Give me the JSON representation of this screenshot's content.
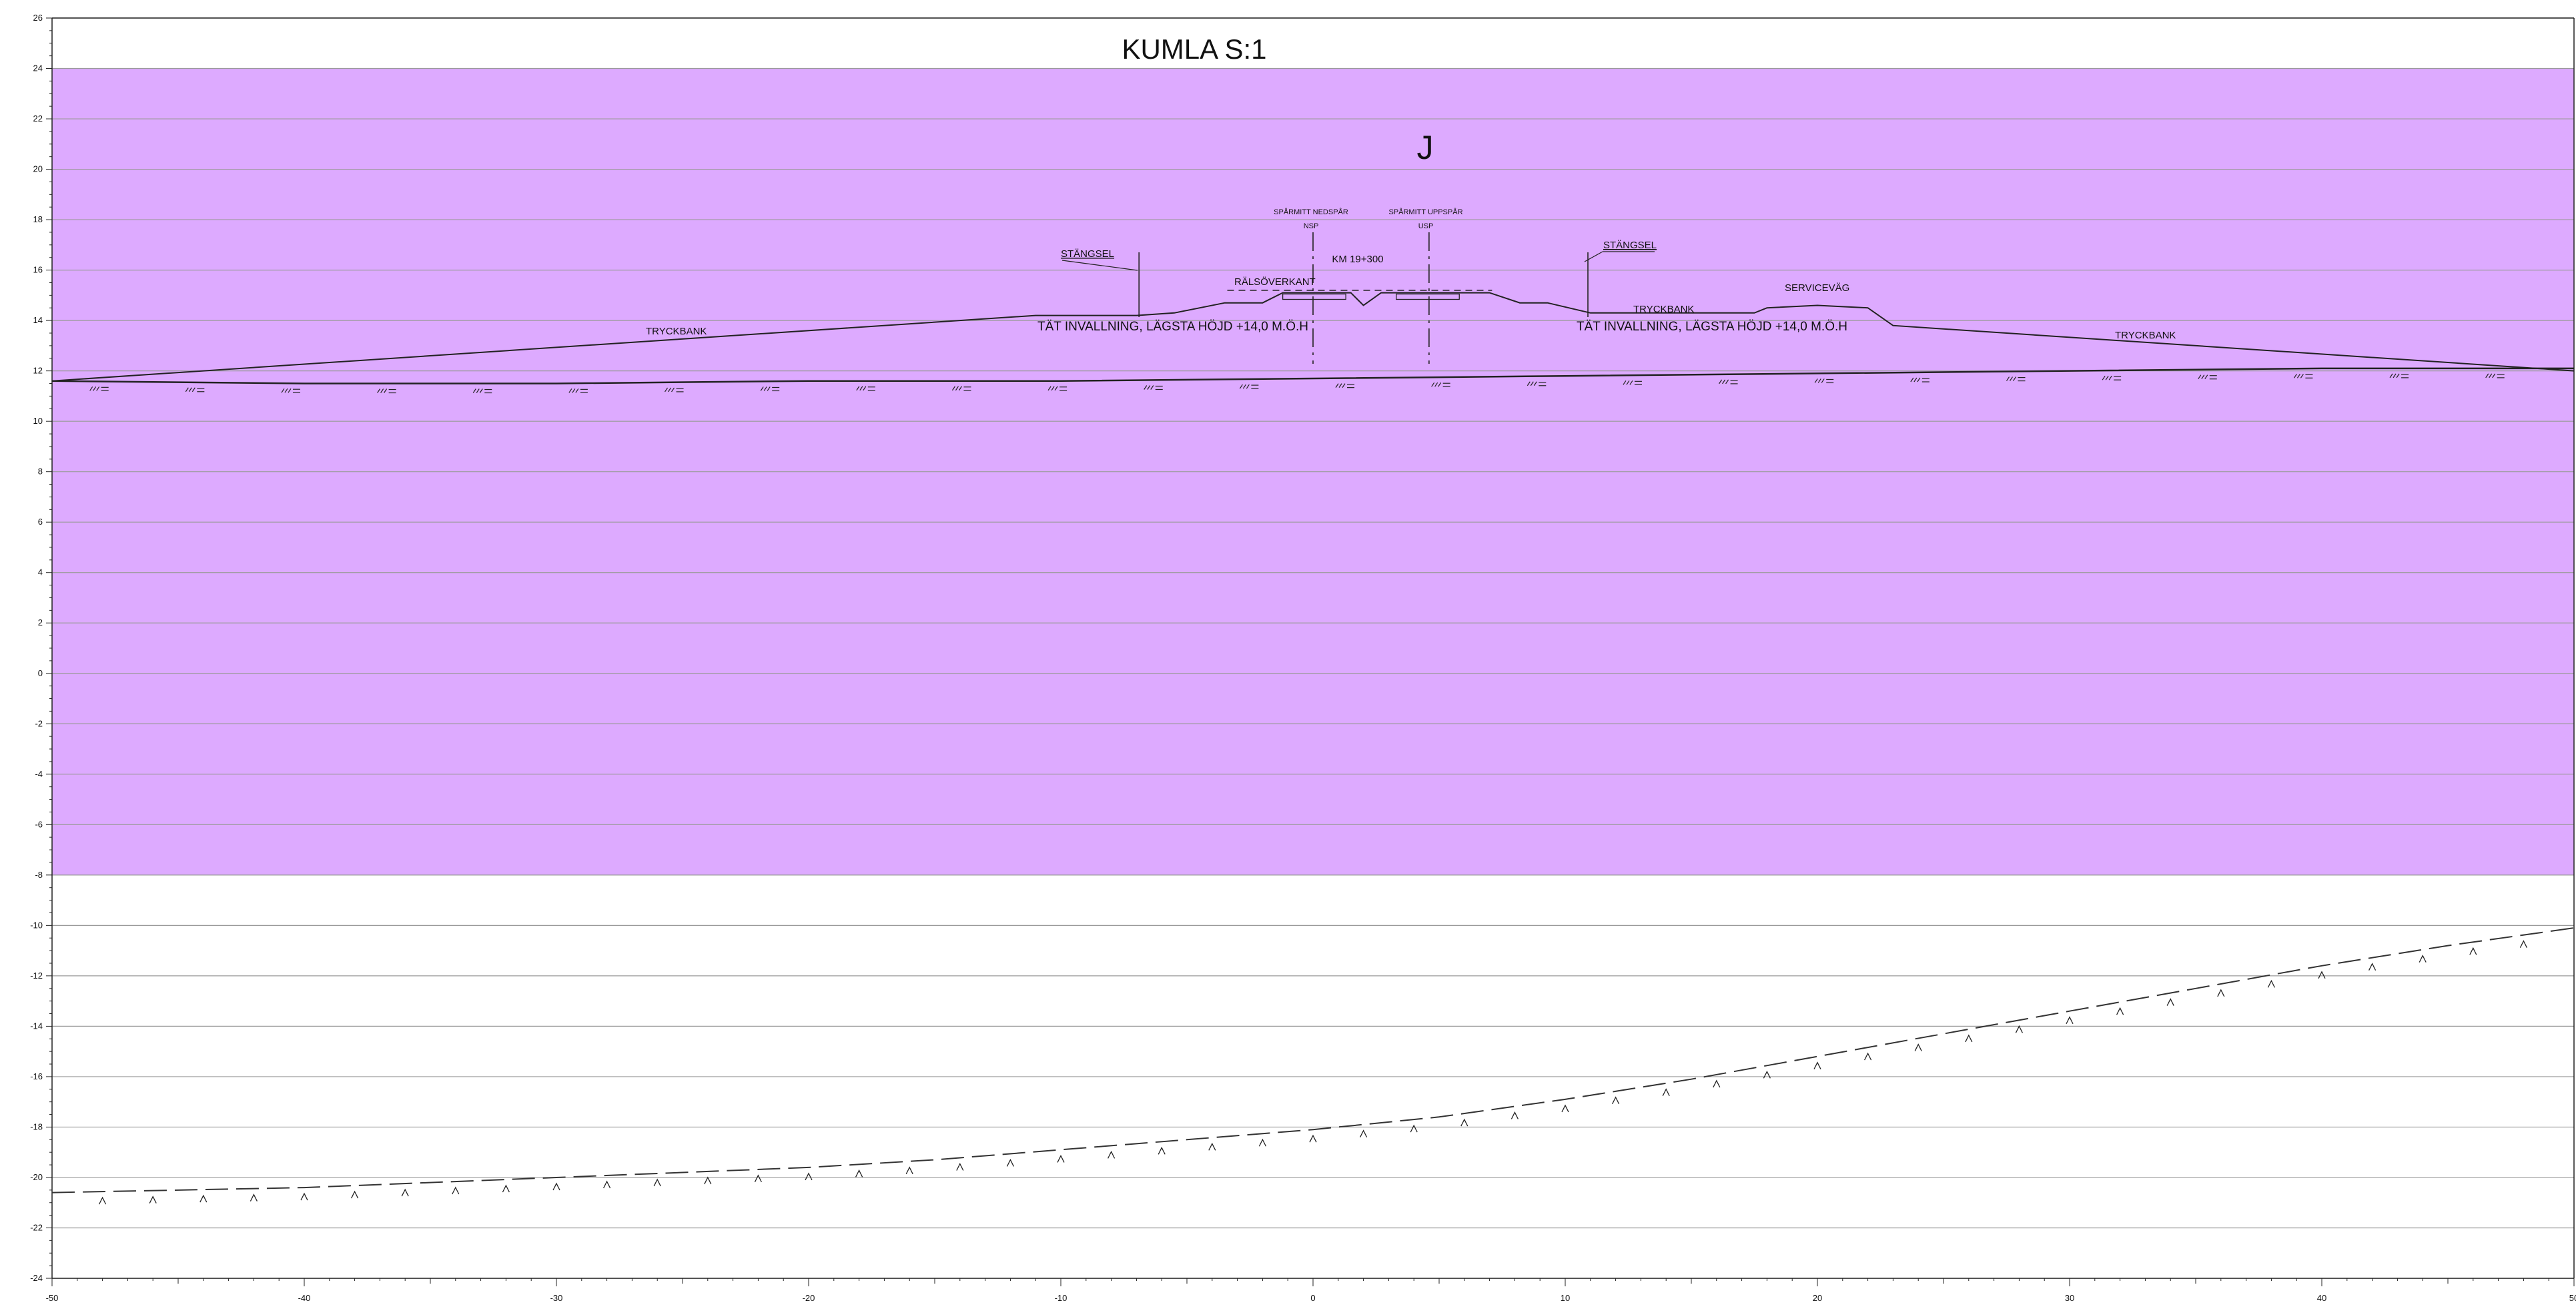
{
  "title": "KUMLA S:1",
  "zone_label": "J",
  "zone_color": "#DDAAFF",
  "axes": {
    "x_range": [
      -50,
      50
    ],
    "y_range": [
      -24,
      26
    ],
    "x_ticks": [
      -50,
      -40,
      -30,
      -20,
      -10,
      0,
      10,
      20,
      30,
      40,
      50
    ],
    "y_ticks": [
      -24,
      -22,
      -20,
      -18,
      -16,
      -14,
      -12,
      -10,
      -8,
      -6,
      -4,
      -2,
      0,
      2,
      4,
      6,
      8,
      10,
      12,
      14,
      16,
      18,
      20,
      22,
      24,
      26
    ],
    "x_tick_labels": [
      "-50",
      "-40",
      "-30",
      "-20",
      "-10",
      "0",
      "10",
      "20",
      "30",
      "40",
      "50"
    ],
    "y_tick_labels": [
      "-24",
      "-22",
      "-20",
      "-18",
      "-16",
      "-14",
      "-12",
      "-10",
      "-8",
      "-6",
      "-4",
      "-2",
      "0",
      "2",
      "4",
      "6",
      "8",
      "10",
      "12",
      "14",
      "16",
      "18",
      "20",
      "22",
      "24",
      "26"
    ]
  },
  "zone_band": {
    "y_from": -8,
    "y_to": 24
  },
  "labels": {
    "station": "KM 19+300",
    "rail_top": "RÄLSÖVERKANT",
    "track_down_title": "SPÅRMITT NEDSPÅR",
    "track_down_code": "NSP",
    "track_up_title": "SPÅRMITT UPPSPÅR",
    "track_up_code": "USP",
    "fence_left": "STÄNGSEL",
    "fence_right": "STÄNGSEL",
    "service_road": "SERVICEVÄG",
    "berm_left": "TRYCKBANK",
    "berm_mid": "TRYCKBANK",
    "berm_right": "TRYCKBANK",
    "dike_left": "TÄT INVALLNING, LÄGSTA HÖJD +14,0 M.Ö.H",
    "dike_right": "TÄT INVALLNING, LÄGSTA HÖJD +14,0 M.Ö.H"
  },
  "terrain_profile": [
    [
      -50,
      11.6
    ],
    [
      -11,
      14.2
    ],
    [
      -7,
      14.2
    ],
    [
      -5.5,
      14.3
    ],
    [
      -3.5,
      14.7
    ],
    [
      -2,
      14.7
    ],
    [
      -1.2,
      15.1
    ],
    [
      1.5,
      15.1
    ],
    [
      2,
      14.6
    ],
    [
      2.7,
      15.1
    ],
    [
      7,
      15.1
    ],
    [
      8.2,
      14.7
    ],
    [
      9.3,
      14.7
    ],
    [
      11,
      14.3
    ],
    [
      17.5,
      14.3
    ],
    [
      18,
      14.5
    ],
    [
      20,
      14.6
    ],
    [
      22,
      14.5
    ],
    [
      23,
      13.8
    ],
    [
      50,
      12.0
    ]
  ],
  "ground_surface": [
    [
      -50,
      11.6
    ],
    [
      -40,
      11.5
    ],
    [
      -30,
      11.5
    ],
    [
      -20,
      11.6
    ],
    [
      -10,
      11.6
    ],
    [
      0,
      11.7
    ],
    [
      10,
      11.8
    ],
    [
      20,
      11.9
    ],
    [
      30,
      12.0
    ],
    [
      40,
      12.1
    ],
    [
      50,
      12.1
    ]
  ],
  "rock_surface": [
    [
      -50,
      -20.6
    ],
    [
      -40,
      -20.4
    ],
    [
      -30,
      -20.0
    ],
    [
      -20,
      -19.6
    ],
    [
      -15,
      -19.3
    ],
    [
      -10,
      -18.9
    ],
    [
      -5,
      -18.5
    ],
    [
      0,
      -18.1
    ],
    [
      5,
      -17.6
    ],
    [
      10,
      -16.9
    ],
    [
      15,
      -16.1
    ],
    [
      20,
      -15.2
    ],
    [
      25,
      -14.3
    ],
    [
      30,
      -13.4
    ],
    [
      35,
      -12.5
    ],
    [
      40,
      -11.6
    ],
    [
      45,
      -10.8
    ],
    [
      50,
      -10.1
    ]
  ]
}
